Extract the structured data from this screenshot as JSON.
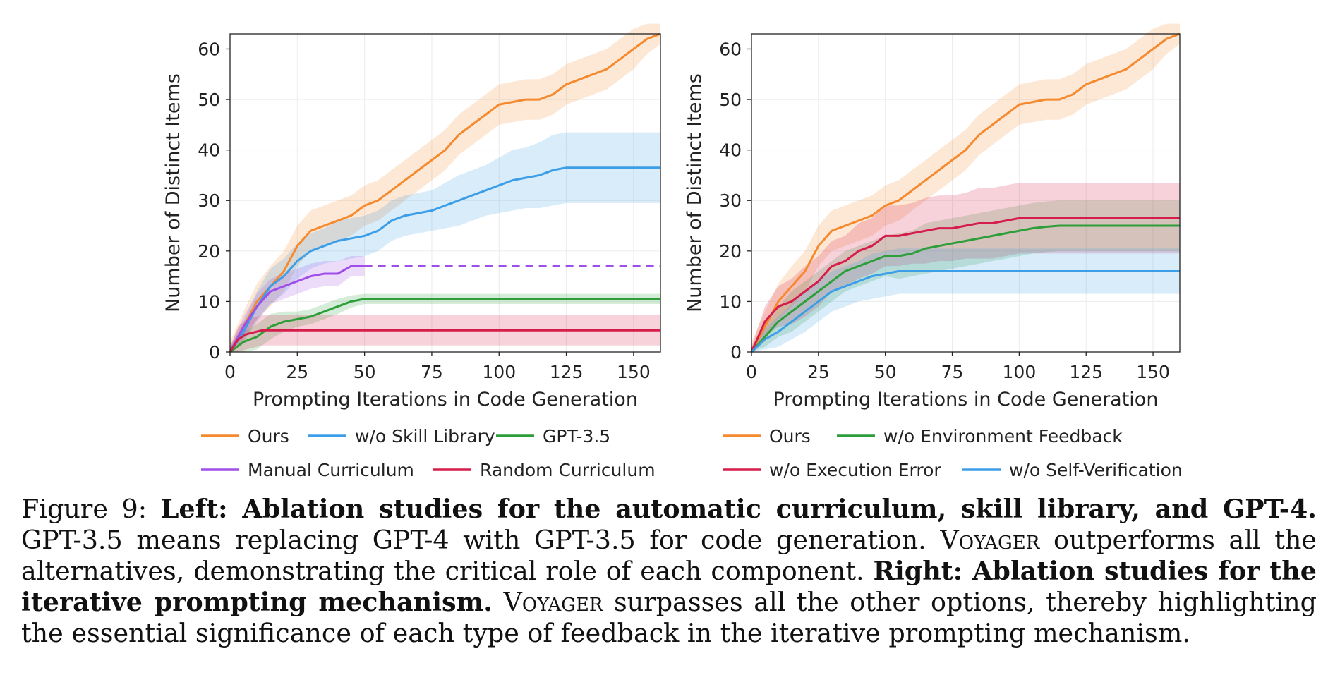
{
  "chart_data": [
    {
      "type": "line",
      "xlabel": "Prompting Iterations in Code Generation",
      "ylabel": "Number of Distinct Items",
      "xlim": [
        0,
        160
      ],
      "ylim": [
        0,
        63
      ],
      "xticks": [
        0,
        25,
        50,
        75,
        100,
        125,
        150
      ],
      "yticks": [
        0,
        10,
        20,
        30,
        40,
        50,
        60
      ],
      "grid": true,
      "legend_position": "bottom",
      "series": [
        {
          "name": "Ours",
          "color": "#f5892d",
          "x": [
            0,
            5,
            10,
            15,
            20,
            25,
            30,
            35,
            40,
            45,
            50,
            55,
            60,
            65,
            70,
            75,
            80,
            85,
            90,
            95,
            100,
            105,
            110,
            115,
            120,
            125,
            130,
            135,
            140,
            145,
            150,
            155,
            160
          ],
          "y": [
            0,
            5,
            10,
            13,
            16,
            21,
            24,
            25,
            26,
            27,
            29,
            30,
            32,
            34,
            36,
            38,
            40,
            43,
            45,
            47,
            49,
            49.5,
            50,
            50,
            51,
            53,
            54,
            55,
            56,
            58,
            60,
            62,
            63
          ],
          "band": [
            2,
            3,
            3.5,
            4,
            4,
            4,
            4,
            4,
            4,
            4,
            4,
            4,
            4,
            4,
            4,
            4,
            4,
            4,
            4,
            4,
            4,
            4,
            4,
            4,
            4,
            4,
            4,
            4,
            4,
            4,
            4,
            3,
            2
          ]
        },
        {
          "name": "w/o Skill Library",
          "color": "#3d9ee8",
          "x": [
            0,
            5,
            10,
            15,
            20,
            25,
            30,
            35,
            40,
            45,
            50,
            55,
            60,
            65,
            70,
            75,
            80,
            85,
            90,
            95,
            100,
            105,
            110,
            115,
            120,
            125,
            130,
            160
          ],
          "y": [
            0,
            4,
            9,
            13,
            15,
            18,
            20,
            21,
            22,
            22.5,
            23,
            24,
            26,
            27,
            27.5,
            28,
            29,
            30,
            31,
            32,
            33,
            34,
            34.5,
            35,
            36,
            36.5,
            36.5,
            36.5
          ],
          "band": [
            1,
            2,
            3,
            3.5,
            3.5,
            3.5,
            3.5,
            3.5,
            4,
            4,
            4,
            4,
            4,
            4,
            4,
            4,
            4.5,
            5,
            5,
            5,
            5.5,
            6,
            6,
            6.5,
            7,
            7,
            7,
            7
          ]
        },
        {
          "name": "GPT-3.5",
          "color": "#2e9e3a",
          "x": [
            0,
            5,
            10,
            15,
            20,
            25,
            30,
            35,
            40,
            45,
            50,
            160
          ],
          "y": [
            0,
            2,
            3,
            5,
            6,
            6.5,
            7,
            8,
            9,
            10,
            10.5,
            10.5
          ],
          "band": [
            1,
            2,
            2.5,
            2.5,
            2,
            1.5,
            1.5,
            1.5,
            1.5,
            1.2,
            1,
            1
          ]
        },
        {
          "name": "Manual Curriculum",
          "color": "#9f4fe8",
          "x": [
            0,
            5,
            10,
            15,
            20,
            25,
            30,
            35,
            40,
            45,
            50
          ],
          "y": [
            0,
            5,
            9,
            12,
            13,
            14,
            15,
            15.5,
            15.5,
            17,
            17
          ],
          "band": [
            1,
            2,
            2.5,
            2.5,
            2.5,
            2.5,
            2.5,
            2.5,
            2.5,
            2,
            2
          ],
          "dashed_extension": {
            "x": [
              50,
              160
            ],
            "y": [
              17,
              17
            ]
          }
        },
        {
          "name": "Random Curriculum",
          "color": "#d51c4b",
          "x": [
            0,
            3,
            6,
            12,
            160
          ],
          "y": [
            0,
            2.5,
            3.5,
            4.3,
            4.3
          ],
          "band": [
            1,
            2.5,
            3,
            3,
            3
          ]
        }
      ]
    },
    {
      "type": "line",
      "xlabel": "Prompting Iterations in Code Generation",
      "ylabel": "Number of Distinct Items",
      "xlim": [
        0,
        160
      ],
      "ylim": [
        0,
        63
      ],
      "xticks": [
        0,
        25,
        50,
        75,
        100,
        125,
        150
      ],
      "yticks": [
        0,
        10,
        20,
        30,
        40,
        50,
        60
      ],
      "grid": true,
      "legend_position": "bottom",
      "series": [
        {
          "name": "Ours",
          "color": "#f5892d",
          "x": [
            0,
            5,
            10,
            15,
            20,
            25,
            30,
            35,
            40,
            45,
            50,
            55,
            60,
            65,
            70,
            75,
            80,
            85,
            90,
            95,
            100,
            105,
            110,
            115,
            120,
            125,
            130,
            135,
            140,
            145,
            150,
            155,
            160
          ],
          "y": [
            0,
            5,
            10,
            13,
            16,
            21,
            24,
            25,
            26,
            27,
            29,
            30,
            32,
            34,
            36,
            38,
            40,
            43,
            45,
            47,
            49,
            49.5,
            50,
            50,
            51,
            53,
            54,
            55,
            56,
            58,
            60,
            62,
            63
          ],
          "band": [
            2,
            3,
            3.5,
            4,
            4,
            4,
            4,
            4,
            4,
            4,
            4,
            4,
            4,
            4,
            4,
            4,
            4,
            4,
            4,
            4,
            4,
            4,
            4,
            4,
            4,
            4,
            4,
            4,
            4,
            4,
            4,
            3,
            2
          ]
        },
        {
          "name": "w/o Environment Feedback",
          "color": "#2e9e3a",
          "x": [
            0,
            5,
            10,
            15,
            20,
            25,
            30,
            35,
            40,
            45,
            50,
            55,
            60,
            65,
            70,
            75,
            80,
            85,
            90,
            95,
            100,
            105,
            110,
            115,
            120,
            160
          ],
          "y": [
            0,
            3,
            6,
            8,
            10,
            12,
            14,
            16,
            17,
            18,
            19,
            19,
            19.5,
            20.5,
            21,
            21.5,
            22,
            22.5,
            23,
            23.5,
            24,
            24.5,
            24.8,
            25,
            25,
            25
          ],
          "band": [
            1,
            2,
            3,
            4,
            4,
            4,
            4,
            4,
            4,
            4,
            4,
            4.5,
            4.5,
            5,
            5,
            5,
            5,
            5,
            5,
            5,
            5,
            5,
            5,
            5,
            5,
            5
          ]
        },
        {
          "name": "w/o Execution Error",
          "color": "#d51c4b",
          "x": [
            0,
            5,
            10,
            15,
            20,
            25,
            30,
            35,
            40,
            45,
            50,
            55,
            60,
            65,
            70,
            75,
            80,
            85,
            90,
            95,
            100,
            105,
            160
          ],
          "y": [
            0,
            6,
            9,
            10,
            12,
            14,
            17,
            18,
            20,
            21,
            23,
            23,
            23.5,
            24,
            24.5,
            24.5,
            25,
            25.5,
            25.5,
            26,
            26.5,
            26.5,
            26.5
          ],
          "band": [
            1,
            3,
            4,
            4.5,
            5,
            5,
            5,
            5,
            5.5,
            5.5,
            6,
            6,
            6,
            6.5,
            6.5,
            6.5,
            6.5,
            7,
            7,
            7,
            7,
            7,
            7
          ]
        },
        {
          "name": "w/o Self-Verification",
          "color": "#3d9ee8",
          "x": [
            0,
            5,
            10,
            15,
            20,
            25,
            30,
            35,
            40,
            45,
            50,
            55,
            60,
            160
          ],
          "y": [
            0,
            2.5,
            4,
            6,
            8,
            10,
            12,
            13,
            14,
            15,
            15.5,
            16,
            16,
            16
          ],
          "band": [
            1,
            2,
            3,
            3.5,
            4,
            4,
            4,
            4,
            4,
            4.5,
            4.5,
            4.5,
            4.5,
            4.5
          ]
        }
      ]
    }
  ],
  "caption": {
    "figure_label": "Figure 9:",
    "left_bold": "Left: Ablation studies for the automatic curriculum, skill library, and GPT-4.",
    "left_text_1": "GPT-3.5 means replacing GPT-4 with GPT-3.5 for code generation.",
    "voyager_1": "Voyager",
    "left_text_2": "outperforms all the alternatives, demonstrating the critical role of each component.",
    "right_bold": "Right: Ablation studies for the iterative prompting mechanism.",
    "voyager_2": "Voyager",
    "right_text": "surpasses all the other options, thereby highlighting the essential significance of each type of feedback in the iterative prompting mechanism."
  }
}
